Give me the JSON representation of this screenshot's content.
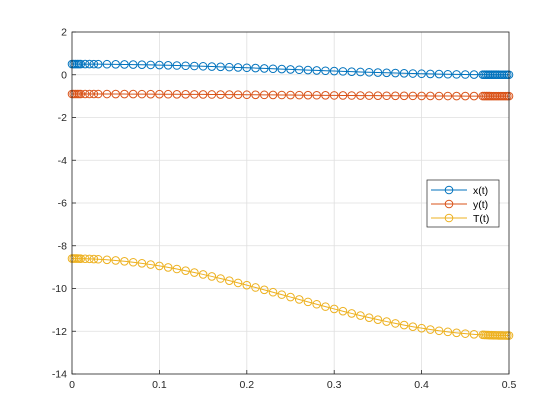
{
  "chart_data": {
    "type": "line",
    "title": "",
    "xlabel": "",
    "ylabel": "",
    "xlim": [
      0,
      0.5
    ],
    "ylim": [
      -14,
      2
    ],
    "xticks": [
      0,
      0.1,
      0.2,
      0.3,
      0.4,
      0.5
    ],
    "yticks": [
      2,
      0,
      -2,
      -4,
      -6,
      -8,
      -10,
      -12,
      -14
    ],
    "grid": true,
    "legend_position": "east (right, middle)",
    "marker": "open-circle",
    "colors": {
      "axes": "#262626",
      "grid": "#dfdfdf",
      "x(t)": "#0072BD",
      "y(t)": "#D95319",
      "T(t)": "#EDB120"
    },
    "x_dense": [
      0,
      0.002,
      0.004,
      0.006,
      0.008,
      0.01,
      0.015,
      0.02,
      0.025,
      0.03,
      0.04,
      0.05,
      0.06,
      0.07,
      0.08,
      0.09,
      0.1,
      0.11,
      0.12,
      0.13,
      0.14,
      0.15,
      0.16,
      0.17,
      0.18,
      0.19,
      0.2,
      0.21,
      0.22,
      0.23,
      0.24,
      0.25,
      0.26,
      0.27,
      0.28,
      0.29,
      0.3,
      0.31,
      0.32,
      0.33,
      0.34,
      0.35,
      0.36,
      0.37,
      0.38,
      0.39,
      0.4,
      0.41,
      0.42,
      0.43,
      0.44,
      0.45,
      0.46,
      0.47,
      0.472,
      0.474,
      0.476,
      0.478,
      0.48,
      0.482,
      0.484,
      0.486,
      0.488,
      0.49,
      0.492,
      0.494,
      0.496,
      0.498,
      0.5
    ],
    "series": [
      {
        "name": "x(t)",
        "y_start": 0.5,
        "y_end": 0.0
      },
      {
        "name": "y(t)",
        "y_start": -0.9,
        "y_end": -1.0
      },
      {
        "name": "T(t)",
        "y_start": -8.6,
        "y_end": -12.2
      }
    ],
    "legend": [
      "x(t)",
      "y(t)",
      "T(t)"
    ]
  }
}
